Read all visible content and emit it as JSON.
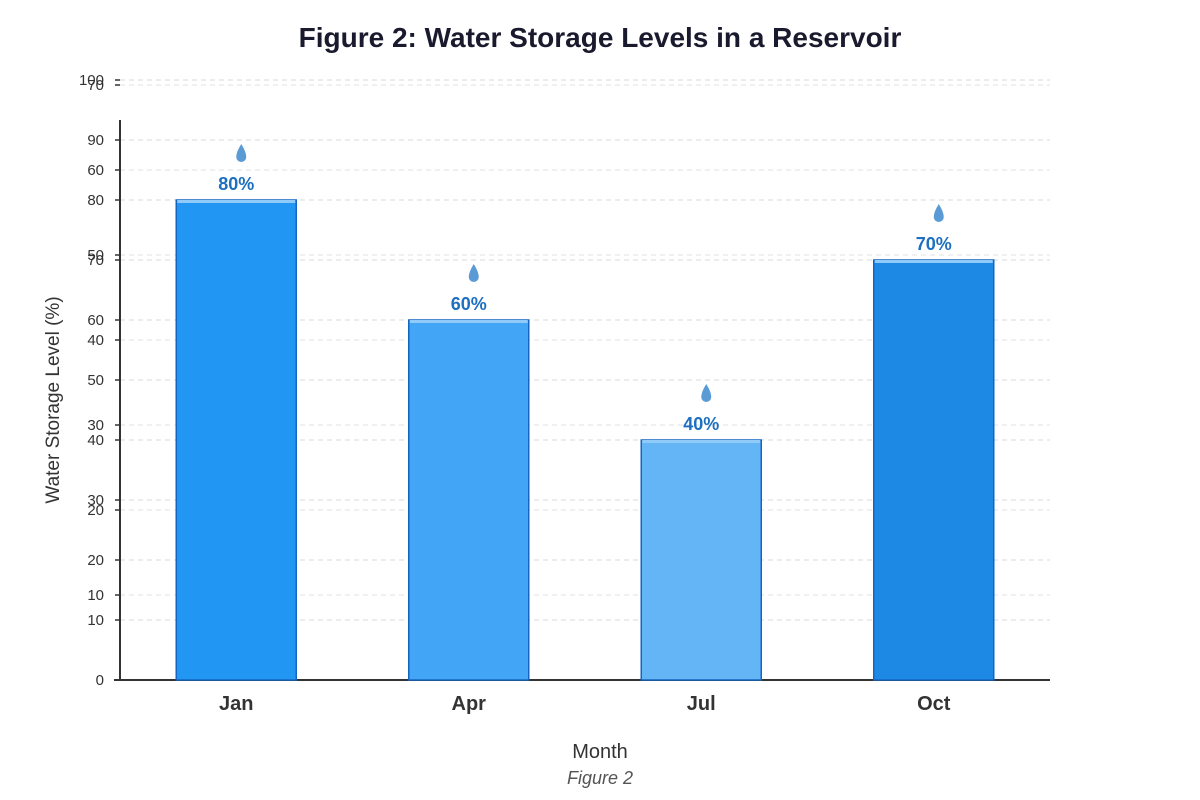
{
  "chart_data": {
    "type": "bar",
    "title": "Figure 2: Water Storage Levels in a Reservoir",
    "xlabel": "Month",
    "ylabel": "Water Storage Level (%)",
    "caption": "Figure 2",
    "categories": [
      "Jan",
      "Apr",
      "Jul",
      "Oct"
    ],
    "values": [
      80,
      60,
      40,
      70
    ],
    "data_labels": [
      "80%",
      "60%",
      "40%",
      "70%"
    ],
    "ylim": [
      0,
      100
    ],
    "yticks": [
      0,
      10,
      20,
      30,
      40,
      50,
      60,
      70,
      80,
      90,
      100
    ],
    "ghost_ticks": [
      10,
      20,
      30,
      40,
      50,
      60,
      70
    ],
    "ghost_ylim": [
      0,
      70
    ],
    "grid": true,
    "bar_colors": [
      "#2196f3",
      "#42a5f5",
      "#64b5f6",
      "#1e88e5"
    ],
    "bar_top_color": "#90caf9",
    "bar_border": "#1565c0",
    "label_color": "#1e6fc0",
    "drop_color": "#5b9bd5"
  }
}
